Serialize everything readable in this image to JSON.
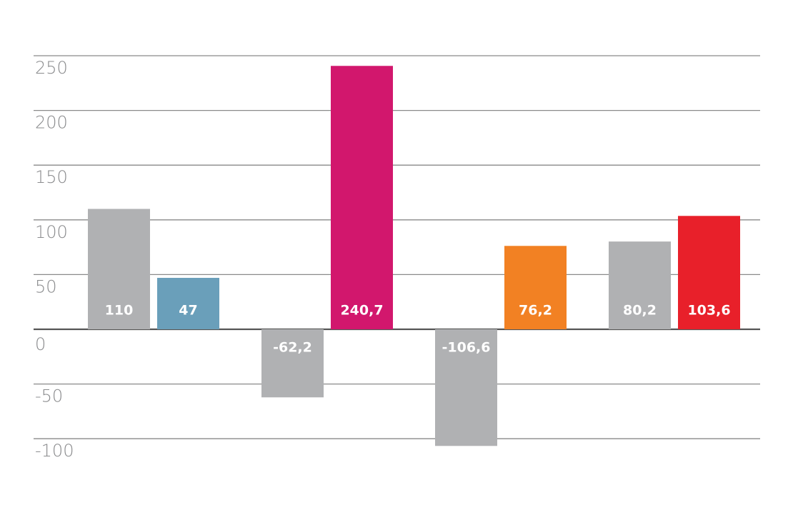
{
  "chart_data": {
    "type": "bar",
    "categories": [
      null,
      null,
      null,
      null
    ],
    "series": [
      {
        "colors": [
          "#b0b1b3",
          "#b0b1b3",
          "#b0b1b3",
          "#b0b1b3"
        ],
        "values": [
          110,
          -62.2,
          -106.6,
          80.2
        ],
        "value_labels": [
          "110",
          "-62,2",
          "-106,6",
          "80,2"
        ]
      },
      {
        "colors": [
          "#6a9fba",
          "#d2176d",
          "#f28123",
          "#e8202a"
        ],
        "values": [
          47,
          240.7,
          76.2,
          103.6
        ],
        "value_labels": [
          "47",
          "240,7",
          "76,2",
          "103,6"
        ]
      }
    ],
    "ylim": [
      -110,
      250
    ],
    "yticks": [
      -100,
      -50,
      0,
      50,
      100,
      150,
      200,
      250
    ],
    "grid": true
  }
}
